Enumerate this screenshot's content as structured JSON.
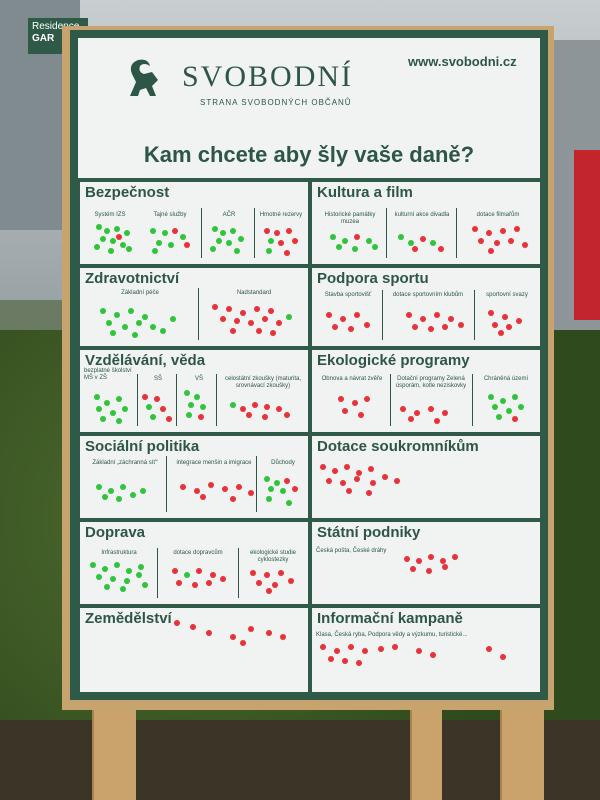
{
  "poster": {
    "brand": "SVOBODNÍ",
    "subtitle": "STRANA SVOBODNÝCH OBČANŮ",
    "website": "www.svobodni.cz",
    "headline": "Kam chcete aby šly vaše daně?",
    "colors": {
      "poster_green": "#2f5a47",
      "paper": "#f1f3f2",
      "green_sticker": "#2fc53a",
      "red_sticker": "#e8323a"
    }
  },
  "sign": {
    "line1": "Residence",
    "line2": "GAR"
  },
  "categories": {
    "bezpecnost": {
      "title": "Bezpečnost",
      "subs": [
        "Systém IZS",
        "Tajné služby",
        "AČR",
        "Hmotné rezervy"
      ]
    },
    "zdravotnictvi": {
      "title": "Zdravotnictví",
      "subs": [
        "Základní péče",
        "Nadstandard"
      ]
    },
    "vzdelavani": {
      "title": "Vzdělávání, věda",
      "subs": [
        "bezplatné školství MŠ v ZŠ",
        "SŠ",
        "VŠ",
        "celostátní zkoušky (maturita, srovnávací zkoušky)"
      ]
    },
    "socialni": {
      "title": "Sociální politika",
      "subs": [
        "Základní „záchranná síť“",
        "integrace menšin a imigrace",
        "Důchody"
      ]
    },
    "doprava": {
      "title": "Doprava",
      "subs": [
        "Infrastruktura",
        "dotace dopravcům",
        "ekologické studie cyklostezky"
      ]
    },
    "zemedelstvi": {
      "title": "Zemědělství"
    },
    "kultura": {
      "title": "Kultura a film",
      "subs": [
        "Historické památky muzea",
        "kulturní akce divadla",
        "dotace filmařům"
      ]
    },
    "sport": {
      "title": "Podpora sportu",
      "subs": [
        "Stavba sportovišť",
        "dotace sportovním klubům",
        "sportovní svazy"
      ]
    },
    "ekologie": {
      "title": "Ekologické programy",
      "subs": [
        "Obnova a návrat zvěře",
        "Dotační programy Zelená úsporám, kotle neziskovky",
        "Chráněná území"
      ]
    },
    "dotace": {
      "title": "Dotace soukromníkům"
    },
    "podniky": {
      "title": "Státní podniky",
      "subs": [
        "Česká pošta, České dráhy"
      ]
    },
    "kampane": {
      "title": "Informační kampaně",
      "subs": [
        "Klasa, Česká ryba, Podpora vědy a výzkumu, turistické..."
      ]
    }
  }
}
